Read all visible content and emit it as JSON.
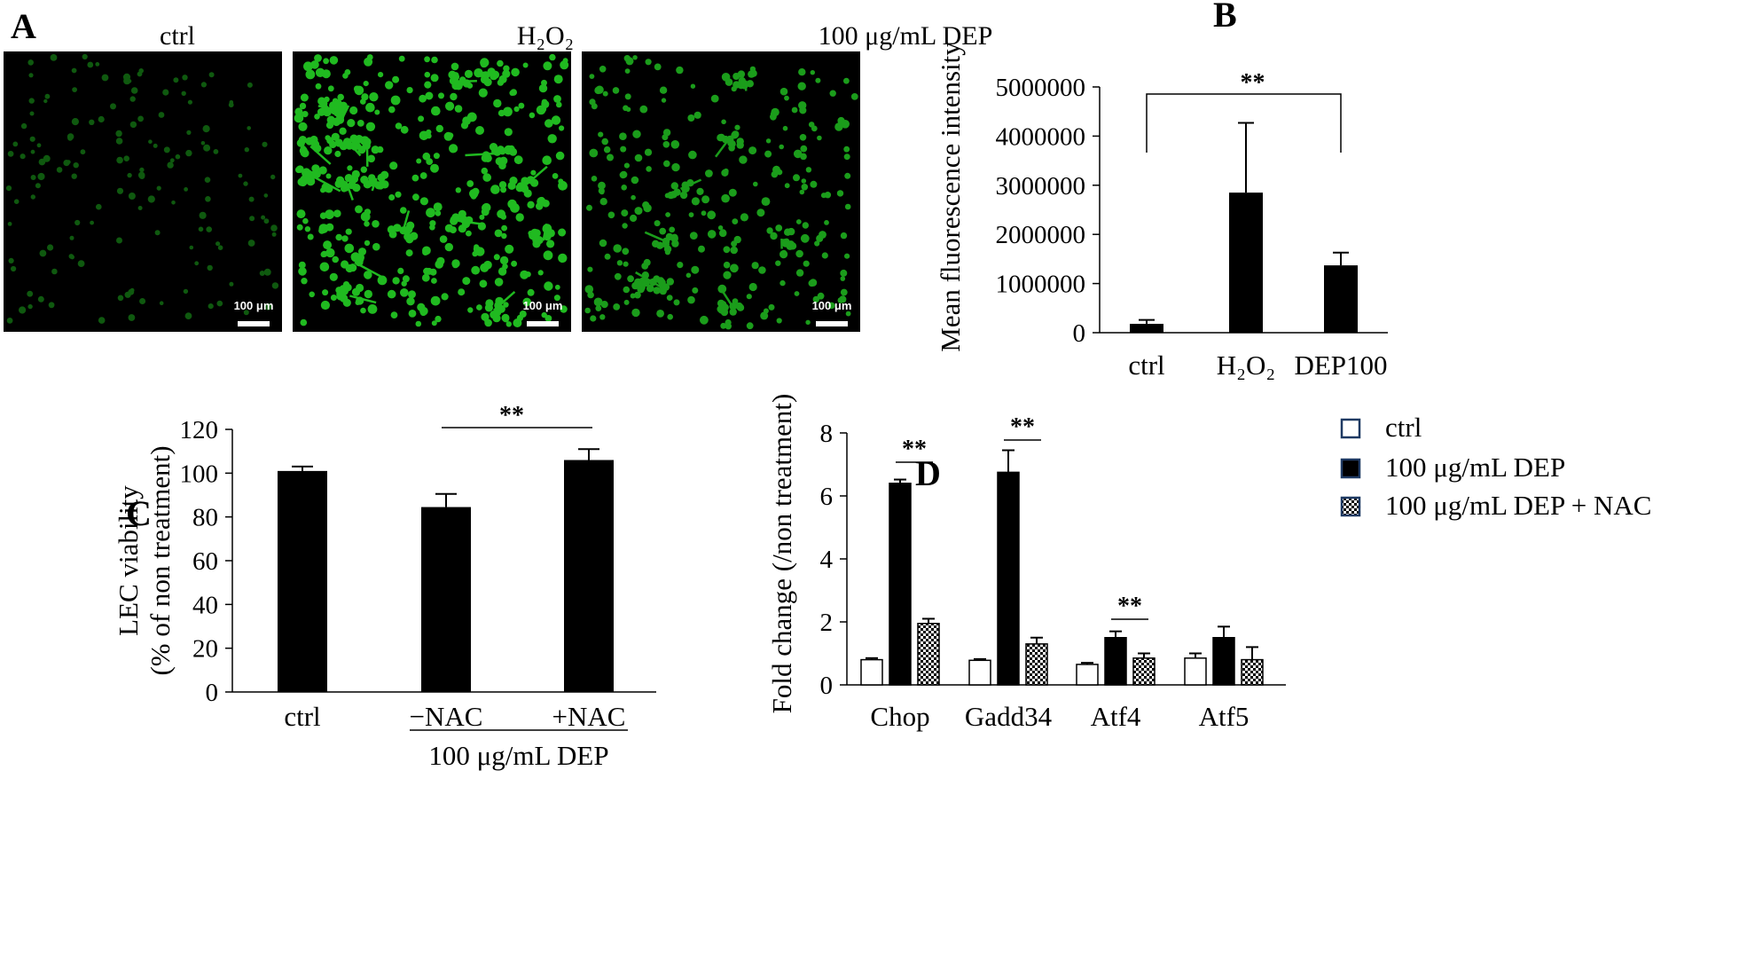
{
  "panels": {
    "A": {
      "letter": "A",
      "images": [
        {
          "title": "ctrl",
          "scale_bar": "100 μm",
          "density": "sparse-dim"
        },
        {
          "title": "H₂O₂",
          "scale_bar": "100 μm",
          "density": "dense-bright"
        },
        {
          "title": "100 μg/mL DEP",
          "scale_bar": "100 μm",
          "density": "medium"
        }
      ]
    },
    "B": {
      "letter": "B"
    },
    "C": {
      "letter": "C",
      "group_label": "100 μg/mL DEP"
    },
    "D": {
      "letter": "D"
    }
  },
  "colors": {
    "bar": "#000000",
    "cell_green": "#22c522",
    "image_bg": "#000000"
  },
  "chart_data": [
    {
      "panel": "B",
      "type": "bar",
      "categories": [
        "ctrl",
        "H₂O₂",
        "DEP100"
      ],
      "values": [
        180000,
        2850000,
        1370000
      ],
      "errors": [
        80000,
        1420000,
        260000
      ],
      "ylabel": "Mean fluorescence intensity",
      "ylim": [
        0,
        5000000
      ],
      "yticks": [
        "0",
        "1000000",
        "2000000",
        "3000000",
        "4000000",
        "5000000"
      ],
      "significance": [
        {
          "from": 0,
          "to": 2,
          "label": "**"
        }
      ]
    },
    {
      "panel": "C",
      "type": "bar",
      "categories": [
        "ctrl",
        "−NAC",
        "+NAC"
      ],
      "values": [
        101,
        84.5,
        106
      ],
      "errors": [
        2,
        6,
        5
      ],
      "ylabel": "LEC viability",
      "ylabel2": "(% of non treatment)",
      "ylim": [
        0,
        120
      ],
      "yticks": [
        "0",
        "20",
        "40",
        "60",
        "80",
        "100",
        "120"
      ],
      "significance": [
        {
          "from": 1,
          "to": 2,
          "label": "**"
        }
      ]
    },
    {
      "panel": "D",
      "type": "bar",
      "categories": [
        "Chop",
        "Gadd34",
        "Atf4",
        "Atf5"
      ],
      "series": [
        {
          "name": "ctrl",
          "style": "white",
          "values": [
            0.8,
            0.78,
            0.65,
            0.85
          ],
          "errors": [
            0.05,
            0.04,
            0.05,
            0.15
          ]
        },
        {
          "name": "100 μg/mL DEP",
          "style": "black",
          "values": [
            6.4,
            6.75,
            1.5,
            1.5
          ],
          "errors": [
            0.12,
            0.7,
            0.2,
            0.35
          ]
        },
        {
          "name": "100 μg/mL DEP + NAC",
          "style": "checker",
          "values": [
            1.95,
            1.3,
            0.85,
            0.8
          ],
          "errors": [
            0.15,
            0.2,
            0.15,
            0.4
          ]
        }
      ],
      "ylabel": "Fold change (/non treatment)",
      "ylim": [
        0,
        8
      ],
      "yticks": [
        "0",
        "2",
        "4",
        "6",
        "8"
      ],
      "significance": [
        {
          "category": 0,
          "from": 1,
          "to": 2,
          "label": "**"
        },
        {
          "category": 1,
          "from": 1,
          "to": 2,
          "label": "**"
        },
        {
          "category": 2,
          "from": 1,
          "to": 2,
          "label": "**"
        }
      ]
    }
  ]
}
